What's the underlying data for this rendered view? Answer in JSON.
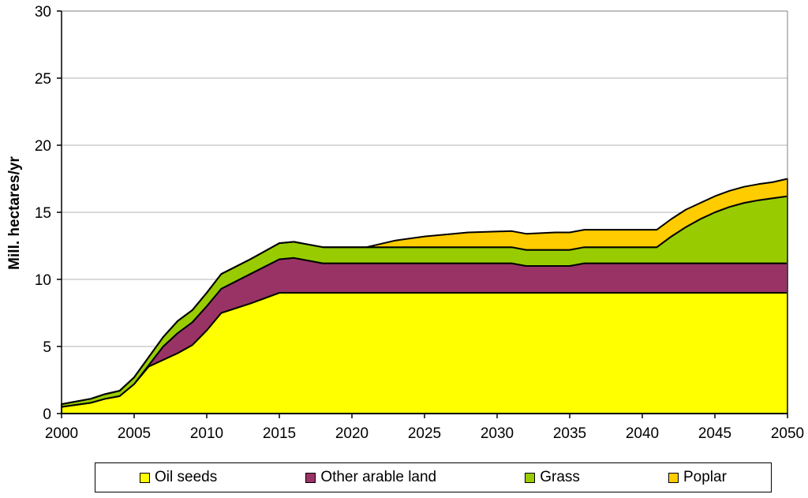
{
  "chart_data": {
    "type": "area",
    "stacked": true,
    "title": "",
    "xlabel": "",
    "ylabel": "Mill. hectares/yr",
    "xlim": [
      2000,
      2050
    ],
    "ylim": [
      0,
      30
    ],
    "x_ticks": [
      2000,
      2005,
      2010,
      2015,
      2020,
      2025,
      2030,
      2035,
      2040,
      2045,
      2050
    ],
    "y_ticks": [
      0,
      5,
      10,
      15,
      20,
      25,
      30
    ],
    "grid": true,
    "legend_position": "bottom",
    "x": [
      2000,
      2002,
      2003,
      2004,
      2005,
      2006,
      2007,
      2008,
      2009,
      2010,
      2011,
      2013,
      2015,
      2016,
      2018,
      2021,
      2023,
      2025,
      2028,
      2031,
      2032,
      2034,
      2035,
      2036,
      2038,
      2041,
      2042,
      2043,
      2044,
      2045,
      2046,
      2047,
      2048,
      2049,
      2050
    ],
    "series": [
      {
        "name": "Oil seeds",
        "color": "#FFFF00",
        "values": [
          0.5,
          0.8,
          1.1,
          1.3,
          2.2,
          3.5,
          4.0,
          4.5,
          5.1,
          6.2,
          7.5,
          8.2,
          9.0,
          9.0,
          9.0,
          9.0,
          9.0,
          9.0,
          9.0,
          9.0,
          9.0,
          9.0,
          9.0,
          9.0,
          9.0,
          9.0,
          9.0,
          9.0,
          9.0,
          9.0,
          9.0,
          9.0,
          9.0,
          9.0,
          9.0
        ]
      },
      {
        "name": "Other arable land",
        "color": "#993366",
        "values": [
          0.0,
          0.0,
          0.0,
          0.0,
          0.0,
          0.1,
          1.0,
          1.5,
          1.7,
          1.8,
          1.8,
          2.2,
          2.5,
          2.6,
          2.2,
          2.2,
          2.2,
          2.2,
          2.2,
          2.2,
          2.0,
          2.0,
          2.0,
          2.2,
          2.2,
          2.2,
          2.2,
          2.2,
          2.2,
          2.2,
          2.2,
          2.2,
          2.2,
          2.2,
          2.2
        ]
      },
      {
        "name": "Grass",
        "color": "#99CC00",
        "values": [
          0.2,
          0.3,
          0.35,
          0.4,
          0.5,
          0.6,
          0.7,
          0.9,
          0.9,
          1.0,
          1.1,
          1.1,
          1.2,
          1.2,
          1.2,
          1.2,
          1.2,
          1.2,
          1.2,
          1.2,
          1.2,
          1.2,
          1.2,
          1.2,
          1.2,
          1.2,
          2.0,
          2.7,
          3.3,
          3.8,
          4.2,
          4.5,
          4.7,
          4.85,
          5.0
        ]
      },
      {
        "name": "Poplar",
        "color": "#FFCC00",
        "values": [
          0.0,
          0.0,
          0.0,
          0.0,
          0.0,
          0.0,
          0.0,
          0.0,
          0.0,
          0.0,
          0.0,
          0.0,
          0.0,
          0.0,
          0.0,
          0.0,
          0.5,
          0.8,
          1.1,
          1.2,
          1.2,
          1.3,
          1.3,
          1.3,
          1.3,
          1.3,
          1.3,
          1.3,
          1.2,
          1.2,
          1.2,
          1.2,
          1.2,
          1.2,
          1.3
        ]
      }
    ]
  }
}
